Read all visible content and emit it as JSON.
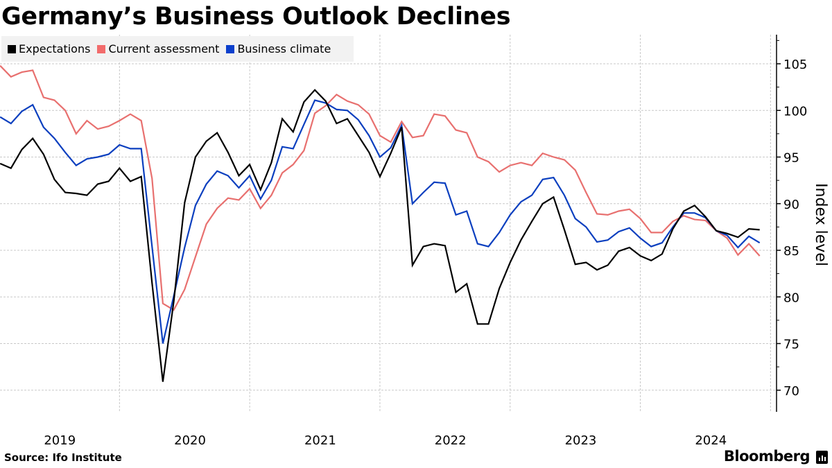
{
  "title": "Germany’s Business Outlook Declines",
  "source": "Source: Ifo Institute",
  "brand": "Bloomberg",
  "colors": {
    "expectations": "#000000",
    "current_assessment": "#e8706f",
    "business_climate": "#0b3fbf",
    "legend_bg": "#f2f2f2",
    "grid": "#c8c8c8"
  },
  "legend": [
    {
      "label": "Expectations",
      "color": "#000000"
    },
    {
      "label": "Current assessment",
      "color": "#f26b6b"
    },
    {
      "label": "Business climate",
      "color": "#0b3fcc"
    }
  ],
  "chart_data": {
    "type": "line",
    "title": "Germany’s Business Outlook Declines",
    "xlabel": "",
    "ylabel": "Index level",
    "ylim": [
      67.7,
      108.1
    ],
    "y_ticks": [
      70,
      75,
      80,
      85,
      90,
      95,
      100,
      105
    ],
    "y_axis_side": "right",
    "x_start": "2019-01",
    "x_end": "2024-11",
    "frequency": "monthly",
    "x_tick_labels": [
      "2019",
      "2020",
      "2021",
      "2022",
      "2023",
      "2024"
    ],
    "grid": true,
    "legend_position": "top-left",
    "series": [
      {
        "name": "Expectations",
        "color": "#000000",
        "values": [
          94.3,
          93.8,
          95.8,
          97.0,
          95.3,
          92.6,
          91.2,
          91.1,
          90.9,
          92.1,
          92.4,
          93.8,
          92.4,
          92.9,
          81.5,
          70.9,
          79.5,
          90.1,
          95.0,
          96.7,
          97.6,
          95.5,
          93.0,
          94.2,
          91.5,
          94.4,
          99.1,
          97.7,
          100.9,
          102.2,
          101.0,
          98.6,
          99.1,
          97.3,
          95.5,
          92.9,
          95.4,
          98.2,
          83.4,
          85.4,
          85.7,
          85.5,
          80.5,
          81.4,
          77.1,
          77.1,
          80.9,
          83.7,
          86.1,
          88.1,
          90.0,
          90.7,
          87.2,
          83.5,
          83.7,
          82.9,
          83.4,
          84.9,
          85.3,
          84.4,
          83.9,
          84.6,
          87.3,
          89.2,
          89.8,
          88.6,
          87.1,
          86.8,
          86.4,
          87.3,
          87.2
        ]
      },
      {
        "name": "Current assessment",
        "color": "#e8706f",
        "values": [
          104.8,
          103.6,
          104.1,
          104.3,
          101.4,
          101.1,
          100.0,
          97.5,
          98.9,
          98.0,
          98.3,
          98.9,
          99.6,
          98.9,
          92.7,
          79.3,
          78.6,
          80.8,
          84.3,
          87.8,
          89.5,
          90.6,
          90.4,
          91.6,
          89.5,
          90.9,
          93.3,
          94.2,
          95.7,
          99.7,
          100.5,
          101.7,
          101.0,
          100.6,
          99.6,
          97.3,
          96.6,
          98.8,
          97.1,
          97.3,
          99.6,
          99.4,
          97.9,
          97.6,
          95.0,
          94.5,
          93.4,
          94.1,
          94.4,
          94.1,
          95.4,
          95.0,
          94.7,
          93.6,
          91.2,
          88.9,
          88.8,
          89.2,
          89.4,
          88.4,
          86.9,
          86.9,
          88.1,
          88.7,
          88.3,
          88.2,
          87.1,
          86.3,
          84.5,
          85.7,
          84.4
        ]
      },
      {
        "name": "Business climate",
        "color": "#0b3fbf",
        "values": [
          99.3,
          98.6,
          99.9,
          100.6,
          98.2,
          97.0,
          95.5,
          94.1,
          94.8,
          95.0,
          95.3,
          96.3,
          95.9,
          95.9,
          85.4,
          75.0,
          80.1,
          85.3,
          89.8,
          92.1,
          93.5,
          93.0,
          91.7,
          93.0,
          90.5,
          92.5,
          96.1,
          95.9,
          98.5,
          101.1,
          100.8,
          100.1,
          100.0,
          99.0,
          97.3,
          95.0,
          96.0,
          98.4,
          90.0,
          91.2,
          92.3,
          92.2,
          88.8,
          89.2,
          85.7,
          85.4,
          86.9,
          88.8,
          90.2,
          90.9,
          92.6,
          92.8,
          90.9,
          88.4,
          87.5,
          85.9,
          86.1,
          87.0,
          87.4,
          86.3,
          85.4,
          85.8,
          87.5,
          89.0,
          89.0,
          88.5,
          87.1,
          86.6,
          85.3,
          86.5,
          85.8
        ]
      }
    ]
  }
}
